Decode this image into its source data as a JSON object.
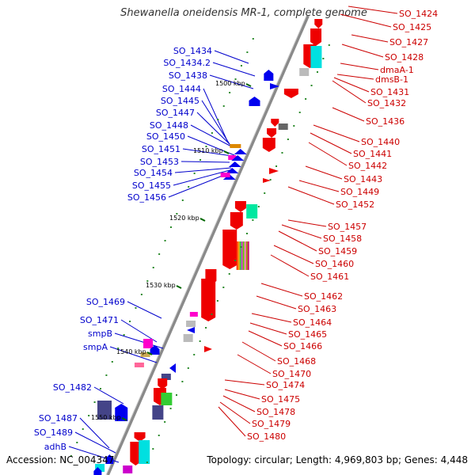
{
  "title": "Shewanella oneidensis MR-1, complete genome",
  "accession": "Accession: NC_004347",
  "summary": "Topology: circular; Length: 4,969,803 bp; Genes: 4,448",
  "colors": {
    "backbone": "#999999",
    "forward_label": "#0000cc",
    "reverse_label": "#cc0000",
    "tick": "#006600"
  },
  "ticks": [
    "1500 kbp",
    "1510 kbp",
    "1520 kbp",
    "1530 kbp",
    "1540 kbp",
    "1550 kbp"
  ],
  "left_labels": [
    "SO_1434",
    "SO_1434.2",
    "SO_1438",
    "SO_1444",
    "SO_1445",
    "SO_1447",
    "SO_1448",
    "SO_1450",
    "SO_1451",
    "SO_1453",
    "SO_1454",
    "SO_1455",
    "SO_1456",
    "SO_1469",
    "SO_1471",
    "smpB",
    "smpA",
    "SO_1482",
    "SO_1487",
    "SO_1489",
    "adhB"
  ],
  "right_labels": [
    "SO_1424",
    "SO_1425",
    "SO_1427",
    "SO_1428",
    "dmaA-1",
    "dmsB-1",
    "SO_1431",
    "SO_1432",
    "SO_1436",
    "SO_1440",
    "SO_1441",
    "SO_1442",
    "SO_1443",
    "SO_1449",
    "SO_1452",
    "SO_1457",
    "SO_1458",
    "SO_1459",
    "SO_1460",
    "SO_1461",
    "SO_1462",
    "SO_1463",
    "SO_1464",
    "SO_1465",
    "SO_1466",
    "SO_1468",
    "SO_1470",
    "SO_1474",
    "SO_1475",
    "SO_1478",
    "SO_1479",
    "SO_1480"
  ]
}
